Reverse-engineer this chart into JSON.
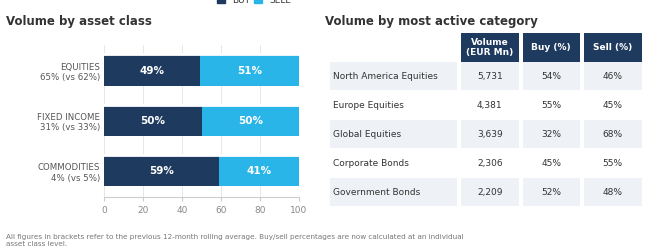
{
  "title_left": "Volume by asset class",
  "title_right": "Volume by most active category",
  "bar_categories": [
    "EQUITIES\n65% (vs 62%)",
    "FIXED INCOME\n31% (vs 33%)",
    "COMMODITIES\n4% (vs 5%)"
  ],
  "buy_values": [
    49,
    50,
    59
  ],
  "sell_values": [
    51,
    50,
    41
  ],
  "buy_color": "#1e3a5f",
  "sell_color": "#29b5e8",
  "legend_buy": "BUY",
  "legend_sell": "SELL",
  "table_headers": [
    "Volume\n(EUR Mn)",
    "Buy (%)",
    "Sell (%)"
  ],
  "table_rows": [
    [
      "North America Equities",
      "5,731",
      "54%",
      "46%"
    ],
    [
      "Europe Equities",
      "4,381",
      "55%",
      "45%"
    ],
    [
      "Global Equities",
      "3,639",
      "32%",
      "68%"
    ],
    [
      "Corporate Bonds",
      "2,306",
      "45%",
      "55%"
    ],
    [
      "Government Bonds",
      "2,209",
      "52%",
      "48%"
    ]
  ],
  "header_bg": "#1e3a5f",
  "header_fg": "#ffffff",
  "row_bg_odd": "#eef1f5",
  "row_bg_even": "#ffffff",
  "footnote": "All figures in brackets refer to the previous 12-month rolling average. Buy/sell percentages are now calculated at an individual\nasset class level.",
  "bg_color": "#ffffff",
  "divider_color": "#ffffff",
  "grid_color": "#cccccc"
}
